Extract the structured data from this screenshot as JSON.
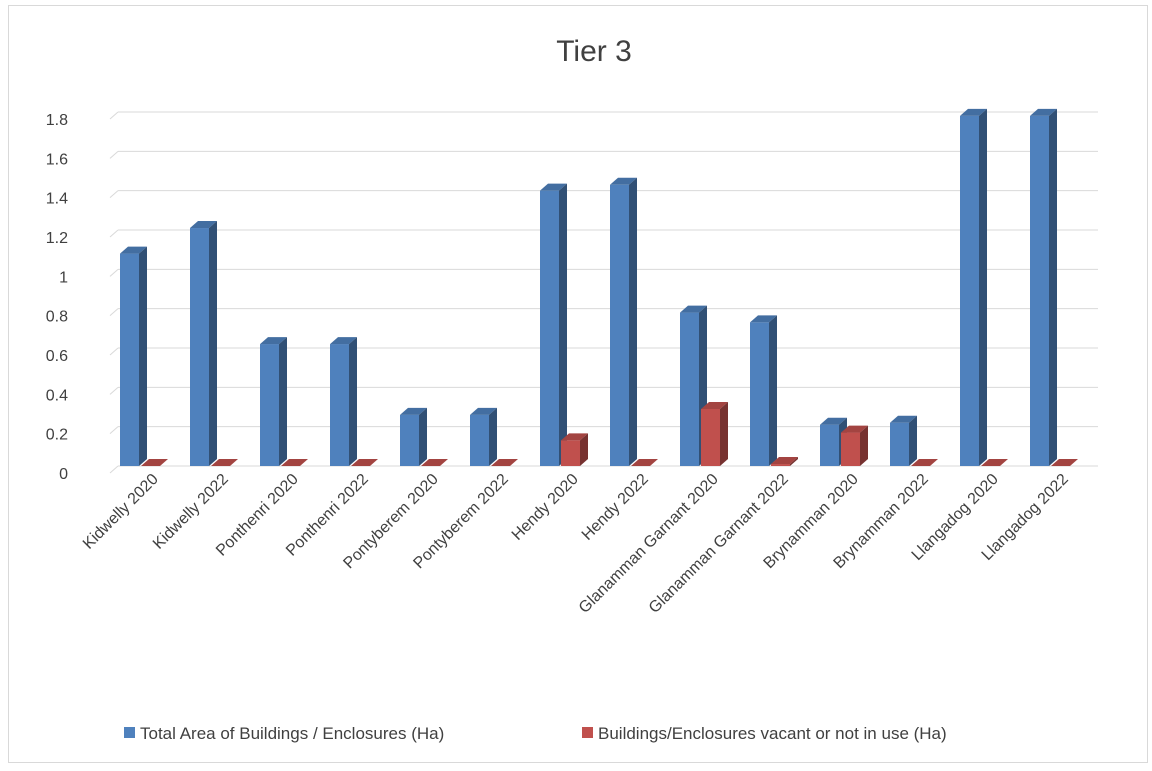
{
  "chart_data": {
    "type": "bar",
    "title": "Tier 3",
    "categories": [
      "Kidwelly 2020",
      "Kidwelly 2022",
      "Ponthenri 2020",
      "Ponthenri 2022",
      "Pontyberem 2020",
      "Pontyberem 2022",
      "Hendy 2020",
      "Hendy 2022",
      "Glanamman Garnant 2020",
      "Glanamman Garnant 2022",
      "Brynamman 2020",
      "Brynamman 2022",
      "Llangadog 2020",
      "Llangadog 2022"
    ],
    "series": [
      {
        "name": "Total Area of Buildings / Enclosures (Ha)",
        "color": "#4f81bd",
        "values": [
          1.08,
          1.21,
          0.62,
          0.62,
          0.26,
          0.26,
          1.4,
          1.43,
          0.78,
          0.73,
          0.21,
          0.22,
          1.78,
          1.78
        ]
      },
      {
        "name": "Buildings/Enclosures vacant or not in use (Ha)",
        "color": "#c0504d",
        "values": [
          0,
          0,
          0,
          0,
          0,
          0,
          0.13,
          0,
          0.29,
          0.01,
          0.17,
          0,
          0,
          0
        ]
      }
    ],
    "y_ticks": [
      "0",
      "0.2",
      "0.4",
      "0.6",
      "0.8",
      "1",
      "1.2",
      "1.4",
      "1.6",
      "1.8"
    ],
    "ylim": [
      0,
      1.8
    ],
    "grid": true,
    "legend_position": "bottom",
    "xlabel": "",
    "ylabel": ""
  }
}
